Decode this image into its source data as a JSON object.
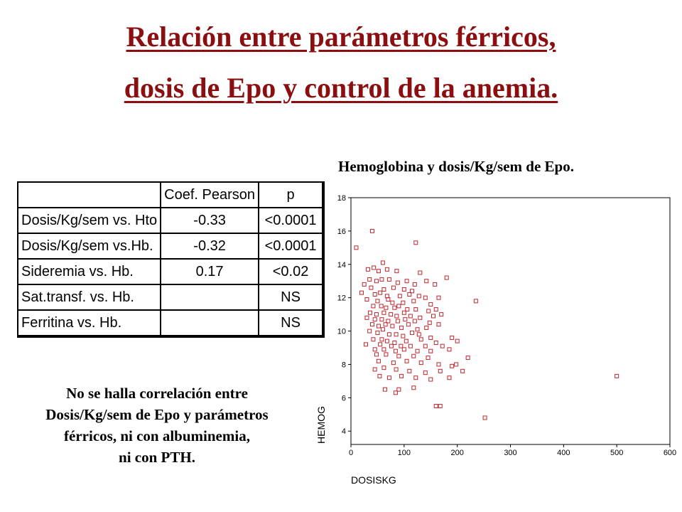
{
  "title": {
    "line1": "Relación entre parámetros férricos,",
    "line2": "dosis de Epo y control de la anemia."
  },
  "table": {
    "headers": [
      "",
      "Coef. Pearson",
      "p"
    ],
    "rows": [
      [
        "Dosis/Kg/sem vs. Hto",
        "-0.33",
        "<0.0001"
      ],
      [
        "Dosis/Kg/sem vs.Hb.",
        "-0.32",
        "<0.0001"
      ],
      [
        "Sideremia vs. Hb.",
        "0.17",
        "<0.02"
      ],
      [
        "Sat.transf. vs. Hb.",
        "",
        "NS"
      ],
      [
        "Ferritina vs. Hb.",
        "",
        "NS"
      ]
    ]
  },
  "note": [
    "No se halla correlación entre",
    "Dosis/Kg/sem de Epo y parámetros",
    "férricos, ni con albuminemia,",
    "ni con PTH."
  ],
  "colors": {
    "title": "#8b0f10",
    "marker": "#c0262d"
  },
  "chart_data": {
    "type": "scatter",
    "title": "Hemoglobina y dosis/Kg/sem de Epo.",
    "xlabel": "DOSISKG",
    "ylabel": "HEMOG",
    "xlim": [
      0,
      600
    ],
    "ylim": [
      3.2,
      18
    ],
    "xticks": [
      0,
      100,
      200,
      300,
      400,
      500,
      600
    ],
    "yticks": [
      4,
      6,
      8,
      10,
      12,
      14,
      16,
      18
    ],
    "marker": "open-square",
    "points": [
      [
        40,
        16
      ],
      [
        122,
        15.3
      ],
      [
        10,
        15
      ],
      [
        60,
        14.1
      ],
      [
        43,
        13.8
      ],
      [
        32,
        13.7
      ],
      [
        52,
        13.6
      ],
      [
        68,
        13.7
      ],
      [
        86,
        13.6
      ],
      [
        130,
        13.5
      ],
      [
        180,
        13.2
      ],
      [
        35,
        13.1
      ],
      [
        48,
        13
      ],
      [
        58,
        13.1
      ],
      [
        72,
        13.1
      ],
      [
        88,
        12.9
      ],
      [
        105,
        13
      ],
      [
        120,
        12.8
      ],
      [
        142,
        13
      ],
      [
        158,
        12.8
      ],
      [
        25,
        12.8
      ],
      [
        38,
        12.6
      ],
      [
        62,
        12.5
      ],
      [
        80,
        12.6
      ],
      [
        100,
        12.5
      ],
      [
        115,
        12.4
      ],
      [
        20,
        12.3
      ],
      [
        45,
        12.2
      ],
      [
        55,
        12.3
      ],
      [
        68,
        12.1
      ],
      [
        92,
        12.1
      ],
      [
        110,
        12.2
      ],
      [
        128,
        12.1
      ],
      [
        140,
        12
      ],
      [
        165,
        12
      ],
      [
        30,
        11.9
      ],
      [
        50,
        11.8
      ],
      [
        70,
        11.9
      ],
      [
        78,
        11.7
      ],
      [
        98,
        11.7
      ],
      [
        118,
        11.8
      ],
      [
        150,
        11.6
      ],
      [
        235,
        11.8
      ],
      [
        42,
        11.5
      ],
      [
        57,
        11.5
      ],
      [
        66,
        11.4
      ],
      [
        82,
        11.4
      ],
      [
        90,
        11.5
      ],
      [
        106,
        11.3
      ],
      [
        122,
        11.3
      ],
      [
        146,
        11.2
      ],
      [
        160,
        11.3
      ],
      [
        36,
        11.1
      ],
      [
        48,
        11
      ],
      [
        62,
        11.1
      ],
      [
        75,
        11
      ],
      [
        86,
        10.9
      ],
      [
        100,
        11.1
      ],
      [
        112,
        10.9
      ],
      [
        130,
        10.8
      ],
      [
        170,
        11
      ],
      [
        155,
        10.9
      ],
      [
        30,
        10.8
      ],
      [
        45,
        10.7
      ],
      [
        58,
        10.7
      ],
      [
        70,
        10.6
      ],
      [
        88,
        10.6
      ],
      [
        102,
        10.7
      ],
      [
        120,
        10.6
      ],
      [
        148,
        10.5
      ],
      [
        165,
        10.4
      ],
      [
        40,
        10.4
      ],
      [
        52,
        10.3
      ],
      [
        65,
        10.4
      ],
      [
        78,
        10.3
      ],
      [
        95,
        10.2
      ],
      [
        108,
        10.4
      ],
      [
        125,
        10.1
      ],
      [
        142,
        10.2
      ],
      [
        60,
        10.1
      ],
      [
        35,
        10
      ],
      [
        50,
        9.9
      ],
      [
        72,
        9.8
      ],
      [
        85,
        9.8
      ],
      [
        98,
        9.7
      ],
      [
        115,
        9.9
      ],
      [
        128,
        9.8
      ],
      [
        150,
        9.6
      ],
      [
        190,
        9.6
      ],
      [
        42,
        9.5
      ],
      [
        58,
        9.5
      ],
      [
        68,
        9.4
      ],
      [
        82,
        9.3
      ],
      [
        104,
        9.4
      ],
      [
        132,
        9.5
      ],
      [
        160,
        9.3
      ],
      [
        200,
        9.4
      ],
      [
        28,
        9.2
      ],
      [
        55,
        9.2
      ],
      [
        76,
        9.1
      ],
      [
        94,
        9.1
      ],
      [
        112,
        9.1
      ],
      [
        140,
        9.1
      ],
      [
        172,
        9.1
      ],
      [
        45,
        8.9
      ],
      [
        62,
        8.9
      ],
      [
        84,
        8.8
      ],
      [
        100,
        8.9
      ],
      [
        125,
        8.8
      ],
      [
        150,
        8.8
      ],
      [
        185,
        8.9
      ],
      [
        48,
        8.6
      ],
      [
        66,
        8.6
      ],
      [
        90,
        8.5
      ],
      [
        118,
        8.5
      ],
      [
        145,
        8.4
      ],
      [
        220,
        8.4
      ],
      [
        52,
        8.2
      ],
      [
        80,
        8.1
      ],
      [
        105,
        8.2
      ],
      [
        132,
        8.1
      ],
      [
        165,
        8
      ],
      [
        198,
        8
      ],
      [
        190,
        7.9
      ],
      [
        45,
        7.7
      ],
      [
        62,
        7.8
      ],
      [
        85,
        7.7
      ],
      [
        110,
        7.6
      ],
      [
        140,
        7.5
      ],
      [
        168,
        7.6
      ],
      [
        210,
        7.6
      ],
      [
        54,
        7.3
      ],
      [
        72,
        7.2
      ],
      [
        95,
        7.3
      ],
      [
        122,
        7.2
      ],
      [
        150,
        7.1
      ],
      [
        185,
        7.2
      ],
      [
        500,
        7.3
      ],
      [
        64,
        6.5
      ],
      [
        90,
        6.5
      ],
      [
        118,
        6.6
      ],
      [
        84,
        6.3
      ],
      [
        160,
        5.5
      ],
      [
        168,
        5.5
      ],
      [
        252,
        4.8
      ]
    ]
  }
}
